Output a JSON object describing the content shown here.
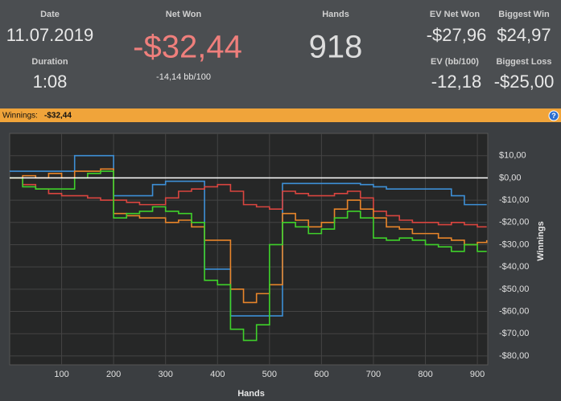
{
  "header": {
    "date_label": "Date",
    "date": "11.07.2019",
    "duration_label": "Duration",
    "duration": "1:08",
    "net_won_label": "Net Won",
    "net_won": "-$32,44",
    "bb100": "-14,14 bb/100",
    "hands_label": "Hands",
    "hands": "918",
    "ev_net_won_label": "EV Net Won",
    "ev_net_won": "-$27,96",
    "biggest_win_label": "Biggest Win",
    "biggest_win": "$24,97",
    "ev_bb_label": "EV (bb/100)",
    "ev_bb": "-12,18",
    "biggest_loss_label": "Biggest Loss",
    "biggest_loss": "-$25,00",
    "bar_label": "Winnings:",
    "bar_value": "-$32,44",
    "help": "?"
  },
  "chart_data": {
    "type": "line",
    "step": true,
    "x_label": "Hands",
    "y_label": "Winnings",
    "x": [
      0,
      25,
      50,
      75,
      100,
      125,
      150,
      175,
      200,
      225,
      250,
      275,
      300,
      325,
      350,
      375,
      400,
      425,
      450,
      475,
      500,
      525,
      550,
      575,
      600,
      625,
      650,
      675,
      700,
      725,
      750,
      775,
      800,
      825,
      850,
      875,
      900,
      918
    ],
    "series": [
      {
        "color": "#3d8fd6",
        "values": [
          3,
          3,
          3,
          3,
          3,
          10,
          10,
          10,
          -8,
          -8,
          -8,
          -3,
          -1.5,
          -1.5,
          -1.5,
          -41,
          -41,
          -62,
          -62,
          -62,
          -62,
          -2.5,
          -2.5,
          -2.5,
          -2.5,
          -2.5,
          -2.5,
          -3,
          -4,
          -5,
          -5,
          -5,
          -5,
          -5,
          -8,
          -12,
          -12,
          -12
        ]
      },
      {
        "color": "#d9453f",
        "values": [
          0,
          -3,
          -5,
          -7,
          -8,
          -8,
          -9,
          -10,
          -10,
          -11,
          -12,
          -12,
          -9,
          -6,
          -5,
          -4,
          -3,
          -6,
          -12,
          -13,
          -14,
          -6,
          -7,
          -8,
          -8,
          -7,
          -6,
          -9,
          -15,
          -17,
          -19,
          -20,
          -20,
          -21,
          -20,
          -21,
          -22,
          -22
        ]
      },
      {
        "color": "#e8852a",
        "values": [
          0,
          1,
          0,
          2,
          0,
          3,
          3,
          4,
          -16,
          -17,
          -18,
          -18,
          -20,
          -19,
          -22,
          -28,
          -28,
          -50,
          -56,
          -52,
          -48,
          -16,
          -19,
          -22,
          -20,
          -14,
          -10,
          -14,
          -18,
          -22,
          -23,
          -25,
          -25,
          -27,
          -28,
          -30,
          -29,
          -28
        ]
      },
      {
        "color": "#3fd12a",
        "values": [
          0,
          -4,
          -5,
          -5,
          -5,
          0,
          2,
          3,
          -18,
          -16,
          -15,
          -13,
          -15,
          -16,
          -20,
          -46,
          -48,
          -68,
          -73,
          -66,
          -30,
          -20,
          -22,
          -25,
          -23,
          -18,
          -15,
          -18,
          -27,
          -28,
          -27,
          -28,
          -30,
          -31,
          -33,
          -30,
          -33,
          -33
        ]
      }
    ],
    "xlim": [
      0,
      920
    ],
    "xticks": [
      100,
      200,
      300,
      400,
      500,
      600,
      700,
      800,
      900
    ],
    "ylim": [
      -84,
      20
    ],
    "yticks": [
      {
        "value": 10,
        "label": "$10,00"
      },
      {
        "value": 0,
        "label": "$0,00"
      },
      {
        "value": -10,
        "label": "-$10,00"
      },
      {
        "value": -20,
        "label": "-$20,00"
      },
      {
        "value": -30,
        "label": "-$30,00"
      },
      {
        "value": -40,
        "label": "-$40,00"
      },
      {
        "value": -50,
        "label": "-$50,00"
      },
      {
        "value": -60,
        "label": "-$60,00"
      },
      {
        "value": -70,
        "label": "-$70,00"
      },
      {
        "value": -80,
        "label": "-$80,00"
      }
    ],
    "grid": true
  }
}
